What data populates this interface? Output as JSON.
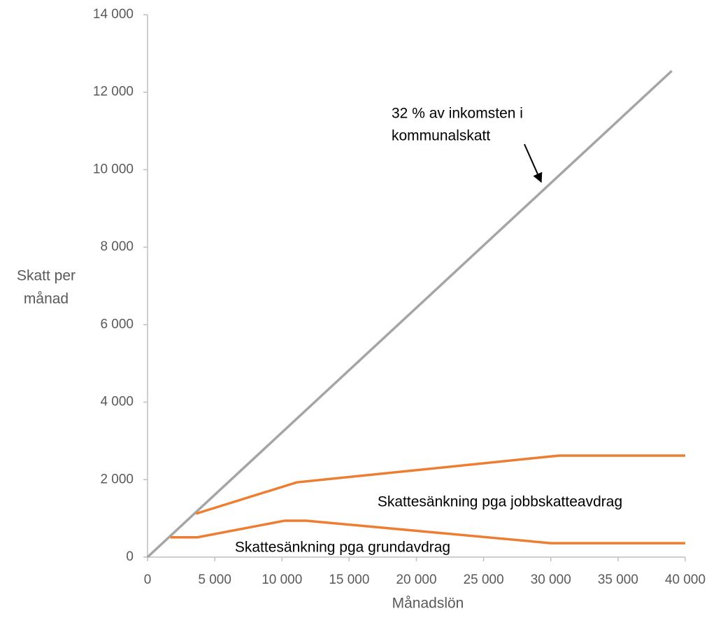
{
  "chart_data": {
    "type": "line",
    "x_label": "Månadslön",
    "y_label": [
      "Skatt per",
      "månad"
    ],
    "series": [
      {
        "color": "#a5a5a5",
        "x": [
          0,
          39000
        ],
        "values": [
          0,
          12550
        ]
      },
      {
        "color": "#ed7d31",
        "x": [
          3600,
          11100,
          30600,
          40000
        ],
        "values": [
          1120,
          1930,
          2620,
          2620
        ]
      },
      {
        "color": "#ed7d31",
        "x": [
          1700,
          3700,
          10200,
          11800,
          30000,
          40000
        ],
        "values": [
          510,
          510,
          940,
          940,
          360,
          360
        ]
      }
    ],
    "annotations": [
      {
        "lines": [
          "32 % av inkomsten i",
          "kommunalskatt"
        ]
      },
      {
        "lines": [
          "Skattesänkning pga jobbskatteavdrag"
        ]
      },
      {
        "lines": [
          "Skattesänkning pga grundavdrag"
        ]
      }
    ],
    "xlim": [
      0,
      40000
    ],
    "xticks": [
      0,
      {
        "value": 5000,
        "label": "5 000"
      },
      {
        "value": 10000,
        "label": "10 000"
      },
      {
        "value": 15000,
        "label": "15 000"
      },
      {
        "value": 20000,
        "label": "20 000"
      },
      {
        "value": 25000,
        "label": "25 000"
      },
      {
        "value": 30000,
        "label": "30 000"
      },
      {
        "value": 35000,
        "label": "35 000"
      },
      {
        "value": 40000,
        "label": "40 000"
      }
    ],
    "ylim": [
      0,
      14000
    ],
    "yticks": [
      0,
      {
        "value": 2000,
        "label": "2 000"
      },
      {
        "value": 4000,
        "label": "4 000"
      },
      {
        "value": 6000,
        "label": "6 000"
      },
      {
        "value": 8000,
        "label": "8 000"
      },
      {
        "value": 10000,
        "label": "10 000"
      },
      {
        "value": 12000,
        "label": "12 000"
      },
      {
        "value": 14000,
        "label": "14 000"
      }
    ],
    "grid": false
  }
}
